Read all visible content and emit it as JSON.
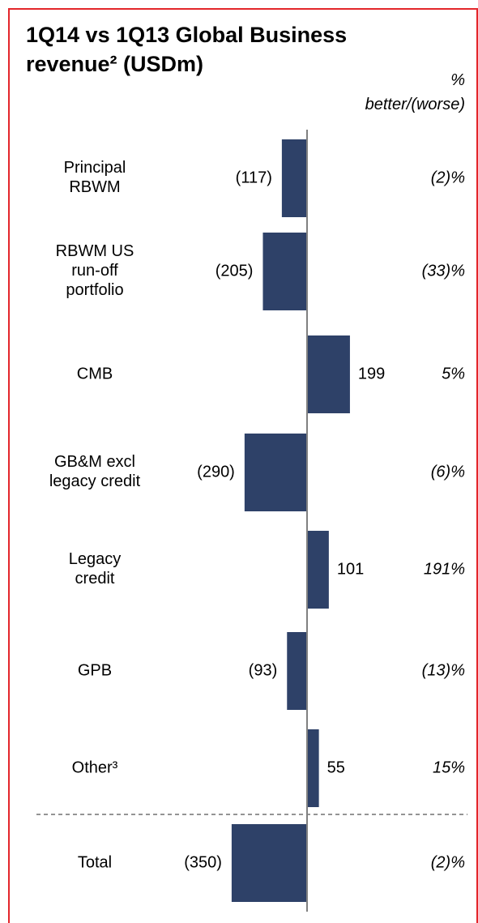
{
  "chart_data": {
    "type": "bar",
    "orientation": "horizontal",
    "title": "1Q14 vs 1Q13 Global Business revenue² (USDm)",
    "column_header": "% better/(worse)",
    "categories": [
      "Principal RBWM",
      "RBWM US run-off portfolio",
      "CMB",
      "GB&M excl legacy credit",
      "Legacy credit",
      "GPB",
      "Other³",
      "Total"
    ],
    "values": [
      -117,
      -205,
      199,
      -290,
      101,
      -93,
      55,
      -350
    ],
    "value_labels": [
      "(117)",
      "(205)",
      "199",
      "(290)",
      "101",
      "(93)",
      "55",
      "(350)"
    ],
    "change_labels": [
      "(2)%",
      "(33)%",
      "5%",
      "(6)%",
      "191%",
      "(13)%",
      "15%",
      "(2)%"
    ],
    "color": "#2e4168"
  }
}
